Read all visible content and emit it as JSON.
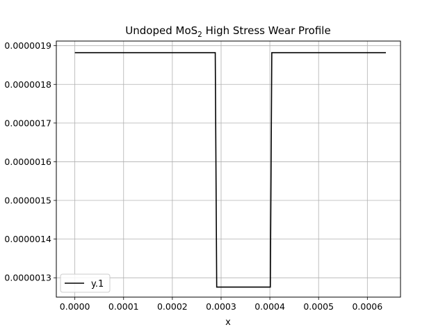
{
  "chart_data": {
    "type": "line",
    "title": {
      "prefix": "Undoped MoS",
      "subscript": "2",
      "suffix": " High Stress Wear Profile"
    },
    "xlabel": "x",
    "ylabel": "",
    "xlim": [
      -3.8e-05,
      0.000668
    ],
    "ylim": [
      1.25e-06,
      1.912e-06
    ],
    "x_ticks": [
      0.0,
      0.0001,
      0.0002,
      0.0003,
      0.0004,
      0.0005,
      0.0006
    ],
    "x_tick_labels": [
      "0.0000",
      "0.0001",
      "0.0002",
      "0.0003",
      "0.0004",
      "0.0005",
      "0.0006"
    ],
    "y_ticks": [
      1.3e-06,
      1.4e-06,
      1.5e-06,
      1.6e-06,
      1.7e-06,
      1.8e-06,
      1.9e-06
    ],
    "y_tick_labels": [
      "0.0000013",
      "0.0000014",
      "0.0000015",
      "0.0000016",
      "0.0000017",
      "0.0000018",
      "0.0000019"
    ],
    "grid": true,
    "legend_position": "lower-left",
    "series": [
      {
        "name": "y.1",
        "color": "#000000",
        "x": [
          0.0,
          0.000288,
          0.000291,
          0.000401,
          0.000404,
          0.000638
        ],
        "y": [
          1.882e-06,
          1.882e-06,
          1.276e-06,
          1.276e-06,
          1.882e-06,
          1.882e-06
        ]
      }
    ]
  }
}
